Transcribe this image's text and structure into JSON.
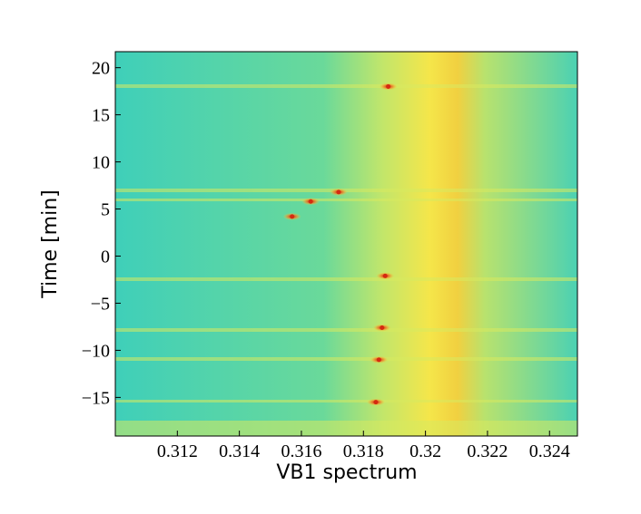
{
  "chart_data": {
    "type": "heatmap",
    "xlabel": "VB1 spectrum",
    "ylabel": "Time [min]",
    "xlim": [
      0.31,
      0.3249
    ],
    "ylim": [
      -19.1,
      21.7
    ],
    "xticks": [
      0.312,
      0.314,
      0.316,
      0.318,
      0.32,
      0.322,
      0.324
    ],
    "yticks": [
      {
        "value": -15,
        "label": "−15"
      },
      {
        "value": -10,
        "label": "−10"
      },
      {
        "value": -5,
        "label": "−5"
      },
      0,
      5,
      10,
      15,
      20
    ],
    "x": [
      0.3188,
      0.3172,
      0.3163,
      0.3157,
      0.3187,
      0.3186,
      0.3185,
      0.3184
    ],
    "values": [
      18,
      6.8,
      5.8,
      4.2,
      -2.1,
      -7.6,
      -11,
      -15.5
    ],
    "color": "#d42a10"
  }
}
